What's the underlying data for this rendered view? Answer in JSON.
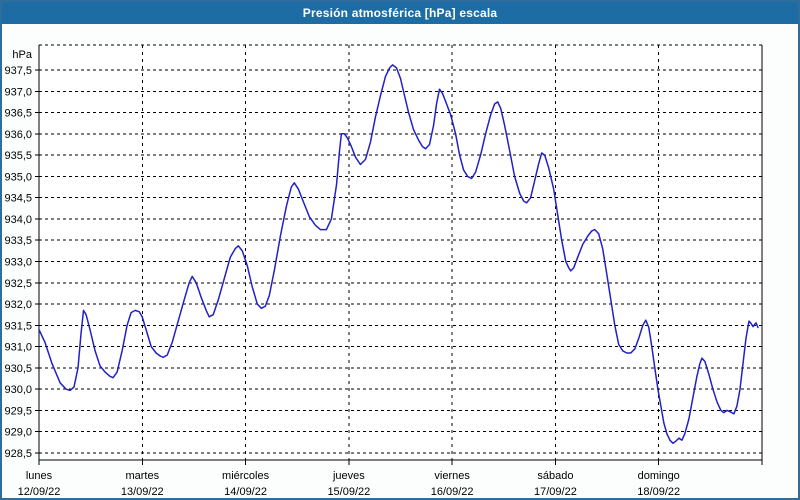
{
  "window": {
    "title": "Presión atmosférica [hPa] escala"
  },
  "colors": {
    "titlebar": "#1d6da4",
    "border": "#2e6d9d",
    "background": "#fbfefc",
    "plot_background": "#ffffff",
    "grid": "#000000",
    "line": "#2121c8",
    "title_text": "#ffffff",
    "label_text": "#000000"
  },
  "chart_data": {
    "type": "line",
    "title": "Presión atmosférica [hPa] escala",
    "y_unit_label": "hPa",
    "ylim": [
      928.5,
      937.5
    ],
    "y_tick_step": 0.5,
    "grid": "dashed",
    "legend": "none",
    "y_tick_labels": [
      "937,5",
      "937,0",
      "936,5",
      "936,0",
      "935,5",
      "935,0",
      "934,5",
      "934,0",
      "933,5",
      "933,0",
      "932,5",
      "932,0",
      "931,5",
      "931,0",
      "930,5",
      "930,0",
      "929,5",
      "929,0",
      "928,5"
    ],
    "x_days": [
      {
        "name": "lunes",
        "date": "12/09/22"
      },
      {
        "name": "martes",
        "date": "13/09/22"
      },
      {
        "name": "miércoles",
        "date": "14/09/22"
      },
      {
        "name": "jueves",
        "date": "15/09/22"
      },
      {
        "name": "viernes",
        "date": "16/09/22"
      },
      {
        "name": "sábado",
        "date": "17/09/22"
      },
      {
        "name": "domingo",
        "date": "18/09/22"
      }
    ],
    "series": [
      {
        "name": "Presión atmosférica [hPa]",
        "x_unit": "days from lunes 12/09/22 00:00",
        "points": [
          [
            0.0,
            931.4
          ],
          [
            0.058,
            931.1
          ],
          [
            0.126,
            930.6
          ],
          [
            0.204,
            930.15
          ],
          [
            0.262,
            930.0
          ],
          [
            0.301,
            929.97
          ],
          [
            0.339,
            930.05
          ],
          [
            0.378,
            930.5
          ],
          [
            0.407,
            931.3
          ],
          [
            0.431,
            931.85
          ],
          [
            0.456,
            931.75
          ],
          [
            0.494,
            931.4
          ],
          [
            0.543,
            930.9
          ],
          [
            0.591,
            930.55
          ],
          [
            0.64,
            930.4
          ],
          [
            0.688,
            930.3
          ],
          [
            0.717,
            930.27
          ],
          [
            0.756,
            930.4
          ],
          [
            0.805,
            930.9
          ],
          [
            0.853,
            931.5
          ],
          [
            0.892,
            931.8
          ],
          [
            0.931,
            931.85
          ],
          [
            0.97,
            931.82
          ],
          [
            0.999,
            931.7
          ],
          [
            1.037,
            931.4
          ],
          [
            1.086,
            931.0
          ],
          [
            1.134,
            930.85
          ],
          [
            1.173,
            930.78
          ],
          [
            1.202,
            930.75
          ],
          [
            1.241,
            930.8
          ],
          [
            1.29,
            931.1
          ],
          [
            1.348,
            931.6
          ],
          [
            1.406,
            932.1
          ],
          [
            1.454,
            932.5
          ],
          [
            1.483,
            932.65
          ],
          [
            1.522,
            932.5
          ],
          [
            1.571,
            932.15
          ],
          [
            1.619,
            931.85
          ],
          [
            1.648,
            931.7
          ],
          [
            1.687,
            931.75
          ],
          [
            1.736,
            932.1
          ],
          [
            1.794,
            932.6
          ],
          [
            1.852,
            933.1
          ],
          [
            1.9,
            933.3
          ],
          [
            1.93,
            933.37
          ],
          [
            1.968,
            933.25
          ],
          [
            2.017,
            932.9
          ],
          [
            2.065,
            932.4
          ],
          [
            2.114,
            932.0
          ],
          [
            2.153,
            931.9
          ],
          [
            2.191,
            931.95
          ],
          [
            2.23,
            932.2
          ],
          [
            2.279,
            932.8
          ],
          [
            2.337,
            933.6
          ],
          [
            2.395,
            934.3
          ],
          [
            2.443,
            934.75
          ],
          [
            2.472,
            934.85
          ],
          [
            2.511,
            934.7
          ],
          [
            2.56,
            934.4
          ],
          [
            2.618,
            934.05
          ],
          [
            2.676,
            933.85
          ],
          [
            2.724,
            933.75
          ],
          [
            2.783,
            933.75
          ],
          [
            2.831,
            934.0
          ],
          [
            2.88,
            934.8
          ],
          [
            2.909,
            935.6
          ],
          [
            2.928,
            936.0
          ],
          [
            2.957,
            936.0
          ],
          [
            2.986,
            935.9
          ],
          [
            3.025,
            935.7
          ],
          [
            3.064,
            935.45
          ],
          [
            3.112,
            935.28
          ],
          [
            3.161,
            935.4
          ],
          [
            3.209,
            935.8
          ],
          [
            3.258,
            936.4
          ],
          [
            3.306,
            936.9
          ],
          [
            3.355,
            937.35
          ],
          [
            3.394,
            937.55
          ],
          [
            3.423,
            937.62
          ],
          [
            3.461,
            937.55
          ],
          [
            3.5,
            937.3
          ],
          [
            3.539,
            936.9
          ],
          [
            3.578,
            936.5
          ],
          [
            3.626,
            936.1
          ],
          [
            3.675,
            935.85
          ],
          [
            3.713,
            935.7
          ],
          [
            3.743,
            935.65
          ],
          [
            3.781,
            935.75
          ],
          [
            3.82,
            936.2
          ],
          [
            3.849,
            936.7
          ],
          [
            3.878,
            937.05
          ],
          [
            3.907,
            936.95
          ],
          [
            3.946,
            936.7
          ],
          [
            3.985,
            936.45
          ],
          [
            4.033,
            936.0
          ],
          [
            4.072,
            935.5
          ],
          [
            4.111,
            935.15
          ],
          [
            4.15,
            935.0
          ],
          [
            4.188,
            934.95
          ],
          [
            4.227,
            935.1
          ],
          [
            4.276,
            935.5
          ],
          [
            4.324,
            936.0
          ],
          [
            4.373,
            936.45
          ],
          [
            4.411,
            936.7
          ],
          [
            4.441,
            936.75
          ],
          [
            4.47,
            936.6
          ],
          [
            4.508,
            936.2
          ],
          [
            4.557,
            935.6
          ],
          [
            4.605,
            935.0
          ],
          [
            4.654,
            934.6
          ],
          [
            4.693,
            934.42
          ],
          [
            4.722,
            934.38
          ],
          [
            4.76,
            934.5
          ],
          [
            4.799,
            934.9
          ],
          [
            4.838,
            935.3
          ],
          [
            4.867,
            935.55
          ],
          [
            4.896,
            935.5
          ],
          [
            4.935,
            935.2
          ],
          [
            4.983,
            934.7
          ],
          [
            5.022,
            934.1
          ],
          [
            5.061,
            933.5
          ],
          [
            5.1,
            933.0
          ],
          [
            5.129,
            932.85
          ],
          [
            5.148,
            932.78
          ],
          [
            5.177,
            932.85
          ],
          [
            5.216,
            933.1
          ],
          [
            5.264,
            933.4
          ],
          [
            5.313,
            933.6
          ],
          [
            5.352,
            933.72
          ],
          [
            5.381,
            933.75
          ],
          [
            5.419,
            933.65
          ],
          [
            5.458,
            933.3
          ],
          [
            5.497,
            932.7
          ],
          [
            5.536,
            932.1
          ],
          [
            5.575,
            931.5
          ],
          [
            5.613,
            931.05
          ],
          [
            5.652,
            930.9
          ],
          [
            5.691,
            930.85
          ],
          [
            5.73,
            930.85
          ],
          [
            5.769,
            930.95
          ],
          [
            5.807,
            931.2
          ],
          [
            5.846,
            931.5
          ],
          [
            5.875,
            931.62
          ],
          [
            5.904,
            931.45
          ],
          [
            5.933,
            931.0
          ],
          [
            5.962,
            930.5
          ],
          [
            5.992,
            930.0
          ],
          [
            6.021,
            929.6
          ],
          [
            6.05,
            929.2
          ],
          [
            6.079,
            928.95
          ],
          [
            6.108,
            928.8
          ],
          [
            6.137,
            928.73
          ],
          [
            6.166,
            928.78
          ],
          [
            6.195,
            928.85
          ],
          [
            6.224,
            928.8
          ],
          [
            6.253,
            928.95
          ],
          [
            6.292,
            929.3
          ],
          [
            6.331,
            929.8
          ],
          [
            6.37,
            930.3
          ],
          [
            6.399,
            930.6
          ],
          [
            6.418,
            930.73
          ],
          [
            6.447,
            930.65
          ],
          [
            6.486,
            930.35
          ],
          [
            6.525,
            930.0
          ],
          [
            6.564,
            929.7
          ],
          [
            6.602,
            929.5
          ],
          [
            6.631,
            929.45
          ],
          [
            6.66,
            929.5
          ],
          [
            6.69,
            929.47
          ],
          [
            6.728,
            929.42
          ],
          [
            6.757,
            929.6
          ],
          [
            6.787,
            930.0
          ],
          [
            6.816,
            930.6
          ],
          [
            6.845,
            931.2
          ],
          [
            6.874,
            931.6
          ],
          [
            6.893,
            931.55
          ],
          [
            6.913,
            931.47
          ],
          [
            6.942,
            931.56
          ],
          [
            6.961,
            931.45
          ]
        ]
      }
    ]
  }
}
